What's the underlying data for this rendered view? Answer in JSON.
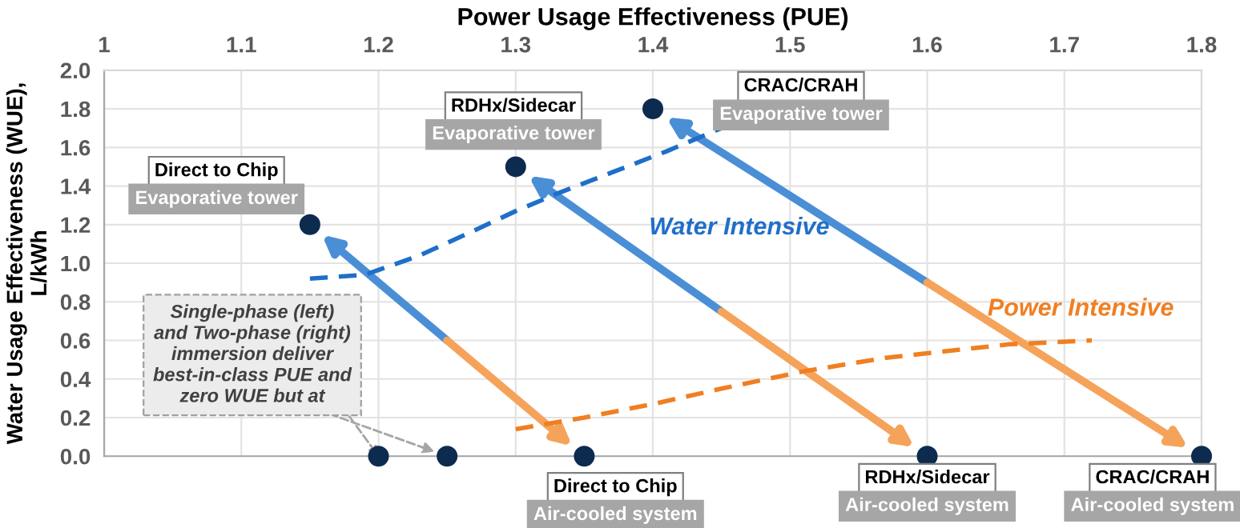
{
  "chart_data": {
    "type": "scatter",
    "xlabel": "Power Usage Effectiveness (PUE)",
    "ylabel": "Water Usage Effectiveness (WUE),\nL/kWh",
    "xlim": [
      1,
      1.8
    ],
    "xticks": [
      1,
      1.1,
      1.2,
      1.3,
      1.4,
      1.5,
      1.6,
      1.7,
      1.8
    ],
    "ylim": [
      0,
      2.0
    ],
    "yticks": [
      {
        "value": 0,
        "label": "0.0"
      },
      {
        "value": 0.2,
        "label": "0.2"
      },
      {
        "value": 0.4,
        "label": "0.4"
      },
      {
        "value": 0.6,
        "label": "0.6"
      },
      {
        "value": 0.8,
        "label": "0.8"
      },
      {
        "value": 1.0,
        "label": "1.0"
      },
      {
        "value": 1.2,
        "label": "1.2"
      },
      {
        "value": 1.4,
        "label": "1.4"
      },
      {
        "value": 1.6,
        "label": "1.6"
      },
      {
        "value": 1.8,
        "label": "1.8"
      },
      {
        "value": 2.0,
        "label": "2.0"
      }
    ],
    "grid": true,
    "marker": "circle",
    "series": [
      {
        "color": "#0d2b4f",
        "x": [
          1.15,
          1.3,
          1.4
        ],
        "values": [
          1.2,
          1.5,
          1.8
        ]
      },
      {
        "color": "#0d2b4f",
        "x": [
          1.2,
          1.25,
          1.35,
          1.6,
          1.8
        ],
        "values": [
          0,
          0,
          0,
          0,
          0
        ]
      },
      {
        "type": "line",
        "name": "Water Intensive",
        "color": "#1f6fc9",
        "line_style": "dashed",
        "marker": "none",
        "x": [
          1.15,
          1.19,
          1.23,
          1.27,
          1.3,
          1.33,
          1.37,
          1.41,
          1.45
        ],
        "values": [
          0.92,
          0.94,
          1.04,
          1.17,
          1.27,
          1.36,
          1.47,
          1.58,
          1.7
        ]
      },
      {
        "type": "line",
        "name": "Power Intensive",
        "color": "#f07f22",
        "line_style": "dashed",
        "marker": "none",
        "x": [
          1.3,
          1.35,
          1.4,
          1.45,
          1.51,
          1.57,
          1.66,
          1.72
        ],
        "values": [
          0.14,
          0.2,
          0.27,
          0.35,
          0.44,
          0.51,
          0.58,
          0.6
        ]
      }
    ],
    "annotations": [
      {
        "text": "Direct to Chip",
        "x": 1.15,
        "y": 1.2
      },
      {
        "text": "Evaporative tower",
        "x": 1.15,
        "y": 1.2
      },
      {
        "text": "RDHx/Sidecar",
        "x": 1.3,
        "y": 1.5
      },
      {
        "text": "Evaporative tower",
        "x": 1.3,
        "y": 1.5
      },
      "CRAC/CRAH",
      "Evaporative tower",
      {
        "text": "Direct to Chip",
        "x": 1.35,
        "y": 0
      },
      {
        "text": "Air-cooled system",
        "x": 1.35,
        "y": 0
      },
      {
        "text": "RDHx/Sidecar",
        "x": 1.6,
        "y": 0
      },
      {
        "text": "Air-cooled system",
        "x": 1.6,
        "y": 0
      },
      {
        "text": "CRAC/CRAH",
        "x": 1.8,
        "y": 0
      },
      {
        "text": "Air-cooled system",
        "x": 1.8,
        "y": 0
      },
      {
        "text": "Single-phase (left)\nand Two-phase (right)\nimmersion deliver\nbest-in-class PUE and\nzero WUE but at",
        "x": 1.2,
        "y": 0
      }
    ]
  }
}
